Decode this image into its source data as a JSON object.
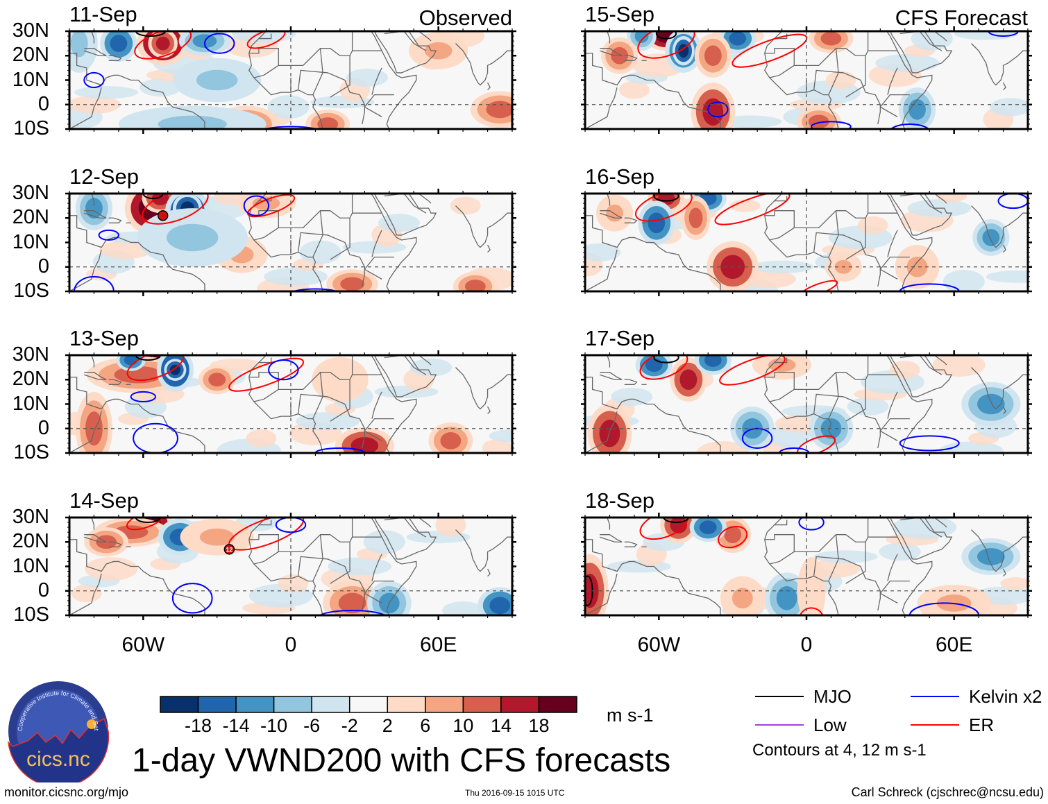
{
  "chart_data": {
    "type": "heatmap",
    "title": "1-day VWND200 with CFS forecasts",
    "variable": "VWND200",
    "units": "m s-1",
    "column_headers": [
      "Observed",
      "CFS Forecast"
    ],
    "lon_range": [
      -90,
      90
    ],
    "lat_range": [
      -10,
      30
    ],
    "xticks": [
      {
        "lon": -60,
        "label": "60W"
      },
      {
        "lon": 0,
        "label": "0"
      },
      {
        "lon": 60,
        "label": "60E"
      }
    ],
    "yticks": [
      {
        "lat": 30,
        "label": "30N"
      },
      {
        "lat": 20,
        "label": "20N"
      },
      {
        "lat": 10,
        "label": "10N"
      },
      {
        "lat": 0,
        "label": "0"
      },
      {
        "lat": -10,
        "label": "10S"
      }
    ],
    "colorbar": {
      "levels": [
        -18,
        -14,
        -10,
        -6,
        -2,
        2,
        6,
        10,
        14,
        18
      ],
      "level_labels": [
        "-18",
        "-14",
        "-10",
        "-6",
        "-2",
        "2",
        "6",
        "10",
        "14",
        "18"
      ],
      "colors": [
        "#08306b",
        "#2166ac",
        "#4393c3",
        "#92c5de",
        "#d1e5f0",
        "#f7f7f7",
        "#fddbc7",
        "#f4a582",
        "#d6604d",
        "#b2182b",
        "#67001f"
      ]
    },
    "contour_legend": [
      {
        "name": "MJO",
        "color": "#000000"
      },
      {
        "name": "Kelvin x2",
        "color": "#0000ff"
      },
      {
        "name": "Low",
        "color": "#a040e0"
      },
      {
        "name": "ER",
        "color": "#ff0000"
      }
    ],
    "contour_note": "Contours at 4, 12 m s-1",
    "panels": [
      {
        "date": "11-Sep",
        "kind": "Observed",
        "blobs": [
          [
            -52,
            25,
            7,
            6,
            10
          ],
          [
            -52,
            25,
            4,
            4,
            9
          ],
          [
            -86,
            25,
            5,
            8,
            3
          ],
          [
            -70,
            25,
            5,
            5,
            1
          ],
          [
            -35,
            26,
            7,
            4,
            2
          ],
          [
            -18,
            -8,
            9,
            5,
            8
          ],
          [
            15,
            -8,
            6,
            4,
            8
          ],
          [
            85,
            -2,
            8,
            5,
            8
          ],
          [
            60,
            22,
            8,
            5,
            7
          ],
          [
            -40,
            -8,
            20,
            5,
            3
          ],
          [
            -30,
            10,
            12,
            6,
            3
          ]
        ],
        "contours": [
          [
            -52,
            25,
            12,
            5,
            "ER"
          ],
          [
            -10,
            27,
            8,
            3,
            "ER"
          ],
          [
            -29,
            25,
            6,
            4,
            "Kelvin"
          ],
          [
            0,
            -12,
            14,
            3,
            "Kelvin"
          ],
          [
            -80,
            10,
            4,
            3,
            "Kelvin"
          ],
          [
            -57,
            30,
            6,
            2,
            "MJO"
          ]
        ]
      },
      {
        "date": "12-Sep",
        "kind": "Observed",
        "blobs": [
          [
            -57,
            24,
            7,
            7,
            10
          ],
          [
            -53,
            28,
            5,
            4,
            9
          ],
          [
            -42,
            23,
            6,
            6,
            0
          ],
          [
            -42,
            24,
            4,
            4,
            0
          ],
          [
            -80,
            24,
            5,
            6,
            2
          ],
          [
            -20,
            5,
            7,
            5,
            7
          ],
          [
            -10,
            26,
            8,
            4,
            7
          ],
          [
            25,
            -7,
            7,
            4,
            8
          ],
          [
            75,
            -8,
            6,
            4,
            8
          ],
          [
            -40,
            12,
            15,
            8,
            3
          ]
        ],
        "contours": [
          [
            -47,
            25,
            14,
            6,
            "ER"
          ],
          [
            -8,
            25,
            10,
            3,
            "ER"
          ],
          [
            -14,
            25,
            5,
            4,
            "Kelvin"
          ],
          [
            -74,
            13,
            4,
            2,
            "Kelvin"
          ],
          [
            -80,
            -10,
            8,
            6,
            "Kelvin"
          ],
          [
            10,
            -12,
            12,
            3,
            "Kelvin"
          ],
          [
            -56,
            30,
            4,
            2,
            "MJO"
          ]
        ]
      },
      {
        "date": "13-Sep",
        "kind": "Observed",
        "blobs": [
          [
            -57,
            26,
            7,
            6,
            10
          ],
          [
            -62,
            22,
            14,
            5,
            8
          ],
          [
            -47,
            24,
            5,
            6,
            0
          ],
          [
            -47,
            24,
            3,
            3,
            0
          ],
          [
            -65,
            28,
            4,
            3,
            1
          ],
          [
            -30,
            20,
            5,
            4,
            8
          ],
          [
            30,
            -7,
            8,
            5,
            9
          ],
          [
            65,
            -5,
            6,
            5,
            8
          ],
          [
            -80,
            0,
            5,
            10,
            8
          ],
          [
            20,
            20,
            10,
            8,
            6
          ]
        ],
        "contours": [
          [
            -55,
            26,
            12,
            5,
            "ER"
          ],
          [
            -10,
            22,
            16,
            4,
            "ER"
          ],
          [
            -3,
            24,
            6,
            4,
            "Kelvin"
          ],
          [
            -60,
            13,
            5,
            2,
            "Kelvin"
          ],
          [
            -55,
            -4,
            9,
            6,
            "Kelvin"
          ],
          [
            20,
            -10,
            10,
            2,
            "Kelvin"
          ],
          [
            -58,
            30,
            5,
            2,
            "MJO"
          ]
        ]
      },
      {
        "date": "14-Sep",
        "kind": "Observed",
        "blobs": [
          [
            -57,
            28,
            6,
            4,
            10
          ],
          [
            -65,
            24,
            10,
            4,
            8
          ],
          [
            -45,
            22,
            6,
            5,
            1
          ],
          [
            -30,
            22,
            10,
            5,
            7
          ],
          [
            25,
            -5,
            8,
            6,
            8
          ],
          [
            85,
            -6,
            6,
            5,
            1
          ],
          [
            40,
            -5,
            6,
            6,
            2
          ],
          [
            -75,
            20,
            6,
            4,
            8
          ]
        ],
        "contours": [
          [
            -10,
            24,
            16,
            5,
            "ER"
          ],
          [
            -59,
            29,
            8,
            3,
            "ER"
          ],
          [
            -40,
            -3,
            8,
            6,
            "Kelvin"
          ],
          [
            25,
            -11,
            14,
            3,
            "Kelvin"
          ],
          [
            0,
            27,
            6,
            3,
            "Kelvin"
          ],
          [
            -58,
            30,
            5,
            2,
            "MJO"
          ]
        ]
      },
      {
        "date": "15-Sep",
        "kind": "CFS Forecast",
        "blobs": [
          [
            -57,
            28,
            6,
            4,
            10
          ],
          [
            -50,
            22,
            5,
            6,
            1
          ],
          [
            -50,
            22,
            3,
            4,
            0
          ],
          [
            -67,
            28,
            4,
            4,
            2
          ],
          [
            -28,
            27,
            5,
            4,
            1
          ],
          [
            -38,
            20,
            5,
            6,
            8
          ],
          [
            -38,
            -3,
            6,
            8,
            9
          ],
          [
            -76,
            20,
            5,
            5,
            8
          ],
          [
            5,
            -7,
            6,
            4,
            8
          ],
          [
            10,
            27,
            6,
            4,
            8
          ],
          [
            45,
            -2,
            5,
            6,
            2
          ]
        ],
        "contours": [
          [
            -57,
            26,
            12,
            6,
            "ER"
          ],
          [
            -15,
            22,
            16,
            4,
            "ER"
          ],
          [
            -36,
            -2,
            4,
            3,
            "Kelvin"
          ],
          [
            10,
            -9,
            8,
            2,
            "Kelvin"
          ],
          [
            42,
            -11,
            8,
            3,
            "Kelvin"
          ],
          [
            80,
            30,
            6,
            2,
            "Kelvin"
          ],
          [
            -57,
            29,
            4,
            2,
            "MJO"
          ]
        ]
      },
      {
        "date": "16-Sep",
        "kind": "CFS Forecast",
        "blobs": [
          [
            -57,
            28,
            5,
            4,
            9
          ],
          [
            -61,
            18,
            5,
            6,
            1
          ],
          [
            -40,
            28,
            5,
            4,
            1
          ],
          [
            -45,
            20,
            4,
            6,
            8
          ],
          [
            -30,
            0,
            7,
            7,
            9
          ],
          [
            -78,
            22,
            5,
            5,
            7
          ],
          [
            75,
            12,
            5,
            5,
            2
          ],
          [
            15,
            0,
            5,
            4,
            7
          ],
          [
            45,
            0,
            6,
            6,
            7
          ]
        ],
        "contours": [
          [
            -58,
            25,
            12,
            5,
            "ER"
          ],
          [
            -22,
            24,
            16,
            4,
            "ER"
          ],
          [
            5,
            -9,
            8,
            2,
            "ER"
          ],
          [
            50,
            -10,
            12,
            3,
            "Kelvin"
          ],
          [
            -20,
            -12,
            8,
            2,
            "Kelvin"
          ],
          [
            84,
            27,
            6,
            3,
            "Kelvin"
          ],
          [
            -57,
            29,
            5,
            2,
            "MJO"
          ]
        ]
      },
      {
        "date": "17-Sep",
        "kind": "CFS Forecast",
        "blobs": [
          [
            -48,
            20,
            5,
            6,
            9
          ],
          [
            -38,
            28,
            5,
            4,
            1
          ],
          [
            -62,
            26,
            5,
            4,
            1
          ],
          [
            -80,
            -2,
            6,
            8,
            9
          ],
          [
            -22,
            0,
            6,
            6,
            2
          ],
          [
            10,
            0,
            6,
            6,
            2
          ],
          [
            75,
            10,
            8,
            6,
            2
          ],
          [
            -10,
            26,
            8,
            4,
            7
          ]
        ],
        "contours": [
          [
            -58,
            26,
            10,
            5,
            "ER"
          ],
          [
            -22,
            24,
            14,
            4,
            "ER"
          ],
          [
            4,
            -7,
            8,
            3,
            "ER"
          ],
          [
            -20,
            -4,
            6,
            4,
            "Kelvin"
          ],
          [
            -5,
            -10,
            6,
            2,
            "Kelvin"
          ],
          [
            50,
            -6,
            12,
            3,
            "Kelvin"
          ],
          [
            -57,
            29,
            5,
            2,
            "MJO"
          ]
        ]
      },
      {
        "date": "18-Sep",
        "kind": "CFS Forecast",
        "blobs": [
          [
            -52,
            27,
            5,
            5,
            9
          ],
          [
            -30,
            23,
            5,
            5,
            8
          ],
          [
            -40,
            26,
            5,
            4,
            1
          ],
          [
            -88,
            0,
            5,
            10,
            9
          ],
          [
            -8,
            -3,
            6,
            7,
            2
          ],
          [
            -26,
            -3,
            6,
            6,
            7
          ],
          [
            60,
            -5,
            10,
            5,
            7
          ],
          [
            75,
            14,
            8,
            5,
            2
          ],
          [
            2,
            0,
            5,
            12,
            6
          ]
        ],
        "contours": [
          [
            -58,
            27,
            10,
            5,
            "ER"
          ],
          [
            -30,
            22,
            6,
            4,
            "ER"
          ],
          [
            2,
            -12,
            5,
            5,
            "ER"
          ],
          [
            56,
            -10,
            14,
            5,
            "Kelvin"
          ],
          [
            2,
            28,
            5,
            3,
            "Kelvin"
          ],
          [
            -89,
            0,
            2,
            6,
            "MJO"
          ],
          [
            -53,
            30,
            5,
            2,
            "MJO"
          ]
        ]
      }
    ],
    "tc_markers": [
      {
        "panel": 1,
        "lon": -52,
        "lat": 21,
        "label": ""
      },
      {
        "panel": 3,
        "lon": -25,
        "lat": 17,
        "label": "12"
      }
    ]
  },
  "footer": {
    "logo_text": "cics.nc",
    "logo_ring_text": "Cooperative Institute for Climate and Satellites",
    "url": "monitor.cicsnc.org/mjo",
    "timestamp": "Thu 2016-09-15 1015 UTC",
    "author": "Carl Schreck (cjschrec@ncsu.edu)"
  }
}
